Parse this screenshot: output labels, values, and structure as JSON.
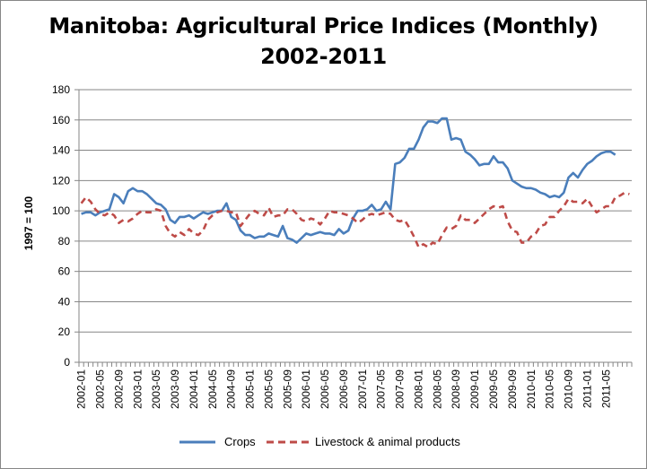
{
  "chart_data": {
    "type": "line",
    "title": "Manitoba: Agricultural Price Indices (Monthly)",
    "subtitle": "2002-2011",
    "ylabel": "1997 = 100",
    "xlabel": "",
    "ylim": [
      0,
      180
    ],
    "yticks": [
      0,
      20,
      40,
      60,
      80,
      100,
      120,
      140,
      160,
      180
    ],
    "grid": true,
    "legend_position": "bottom",
    "xtick_labels": [
      "2002-01",
      "2002-05",
      "2002-09",
      "2003-01",
      "2003-05",
      "2003-09",
      "2004-01",
      "2004-05",
      "2004-09",
      "2005-01",
      "2005-05",
      "2005-09",
      "2006-01",
      "2006-05",
      "2006-09",
      "2007-01",
      "2007-05",
      "2007-09",
      "2008-01",
      "2008-05",
      "2008-09",
      "2009-01",
      "2009-05",
      "2009-09",
      "2010-01",
      "2010-05",
      "2010-09",
      "2011-01",
      "2011-05"
    ],
    "start_month": "2002-01",
    "series": [
      {
        "name": "Crops",
        "color": "#4a7ebb",
        "dash": "solid",
        "values": [
          98,
          99,
          99,
          97,
          99,
          100,
          101,
          111,
          109,
          105,
          113,
          115,
          113,
          113,
          111,
          108,
          105,
          104,
          101,
          94,
          92,
          96,
          96,
          97,
          95,
          97,
          99,
          98,
          99,
          100,
          100,
          105,
          96,
          94,
          87,
          84,
          84,
          82,
          83,
          83,
          85,
          84,
          83,
          90,
          82,
          81,
          79,
          82,
          85,
          84,
          85,
          86,
          85,
          85,
          84,
          88,
          85,
          87,
          95,
          100,
          100,
          101,
          104,
          100,
          101,
          106,
          101,
          131,
          132,
          135,
          141,
          141,
          147,
          155,
          159,
          159,
          158,
          161,
          161,
          147,
          148,
          147,
          139,
          137,
          134,
          130,
          131,
          131,
          136,
          132,
          132,
          128,
          120,
          118,
          116,
          115,
          115,
          114,
          112,
          111,
          109,
          110,
          109,
          112,
          122,
          125,
          122,
          127,
          131,
          133,
          136,
          138,
          139,
          139,
          137
        ]
      },
      {
        "name": "Livestock & animal products",
        "color": "#be4b48",
        "dash": "dashed",
        "values": [
          105,
          109,
          106,
          101,
          98,
          97,
          99,
          97,
          92,
          94,
          93,
          95,
          98,
          100,
          99,
          99,
          101,
          100,
          90,
          85,
          83,
          86,
          84,
          88,
          85,
          84,
          87,
          94,
          97,
          99,
          100,
          100,
          99,
          99,
          90,
          94,
          98,
          100,
          98,
          97,
          102,
          96,
          97,
          97,
          101,
          101,
          98,
          94,
          93,
          95,
          94,
          91,
          95,
          100,
          99,
          99,
          98,
          97,
          95,
          92,
          94,
          97,
          98,
          97,
          98,
          99,
          98,
          94,
          93,
          94,
          89,
          83,
          76,
          78,
          76,
          79,
          78,
          84,
          89,
          88,
          90,
          97,
          94,
          94,
          92,
          95,
          98,
          101,
          103,
          102,
          103,
          93,
          87,
          86,
          79,
          79,
          83,
          85,
          90,
          91,
          96,
          96,
          100,
          103,
          108,
          106,
          106,
          105,
          108,
          103,
          99,
          101,
          103,
          103,
          109,
          110,
          112,
          111
        ]
      }
    ]
  }
}
